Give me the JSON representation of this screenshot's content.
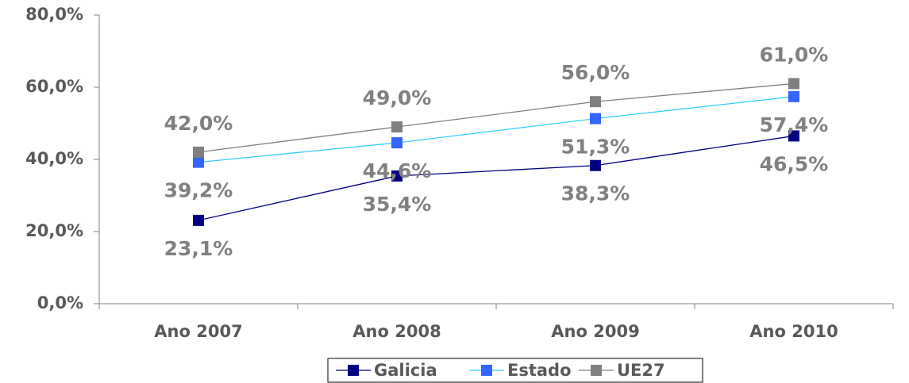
{
  "chart_data": {
    "type": "line",
    "categories": [
      "Ano 2007",
      "Ano 2008",
      "Ano 2009",
      "Ano 2010"
    ],
    "series": [
      {
        "name": "Galicia",
        "color": "#000080",
        "line_color": "#000080",
        "label_position": "below",
        "values": [
          23.1,
          35.4,
          38.3,
          46.5
        ],
        "value_labels": [
          "23,1%",
          "35,4%",
          "38,3%",
          "46,5%"
        ]
      },
      {
        "name": "Estado",
        "color": "#3366ff",
        "line_color": "#33ccff",
        "label_position": "below",
        "values": [
          39.2,
          44.6,
          51.3,
          57.4
        ],
        "value_labels": [
          "39,2%",
          "44,6%",
          "51,3%",
          "57,4%"
        ]
      },
      {
        "name": "UE27",
        "color": "#808080",
        "line_color": "#808080",
        "label_position": "above",
        "values": [
          42.0,
          49.0,
          56.0,
          61.0
        ],
        "value_labels": [
          "42,0%",
          "49,0%",
          "56,0%",
          "61,0%"
        ]
      }
    ],
    "ylim": [
      0,
      80
    ],
    "yticks": [
      {
        "value": 0,
        "label": "0,0%"
      },
      {
        "value": 20,
        "label": "20,0%"
      },
      {
        "value": 40,
        "label": "40,0%"
      },
      {
        "value": 60,
        "label": "60,0%"
      },
      {
        "value": 80,
        "label": "80,0%"
      }
    ],
    "legend": "bottom"
  }
}
